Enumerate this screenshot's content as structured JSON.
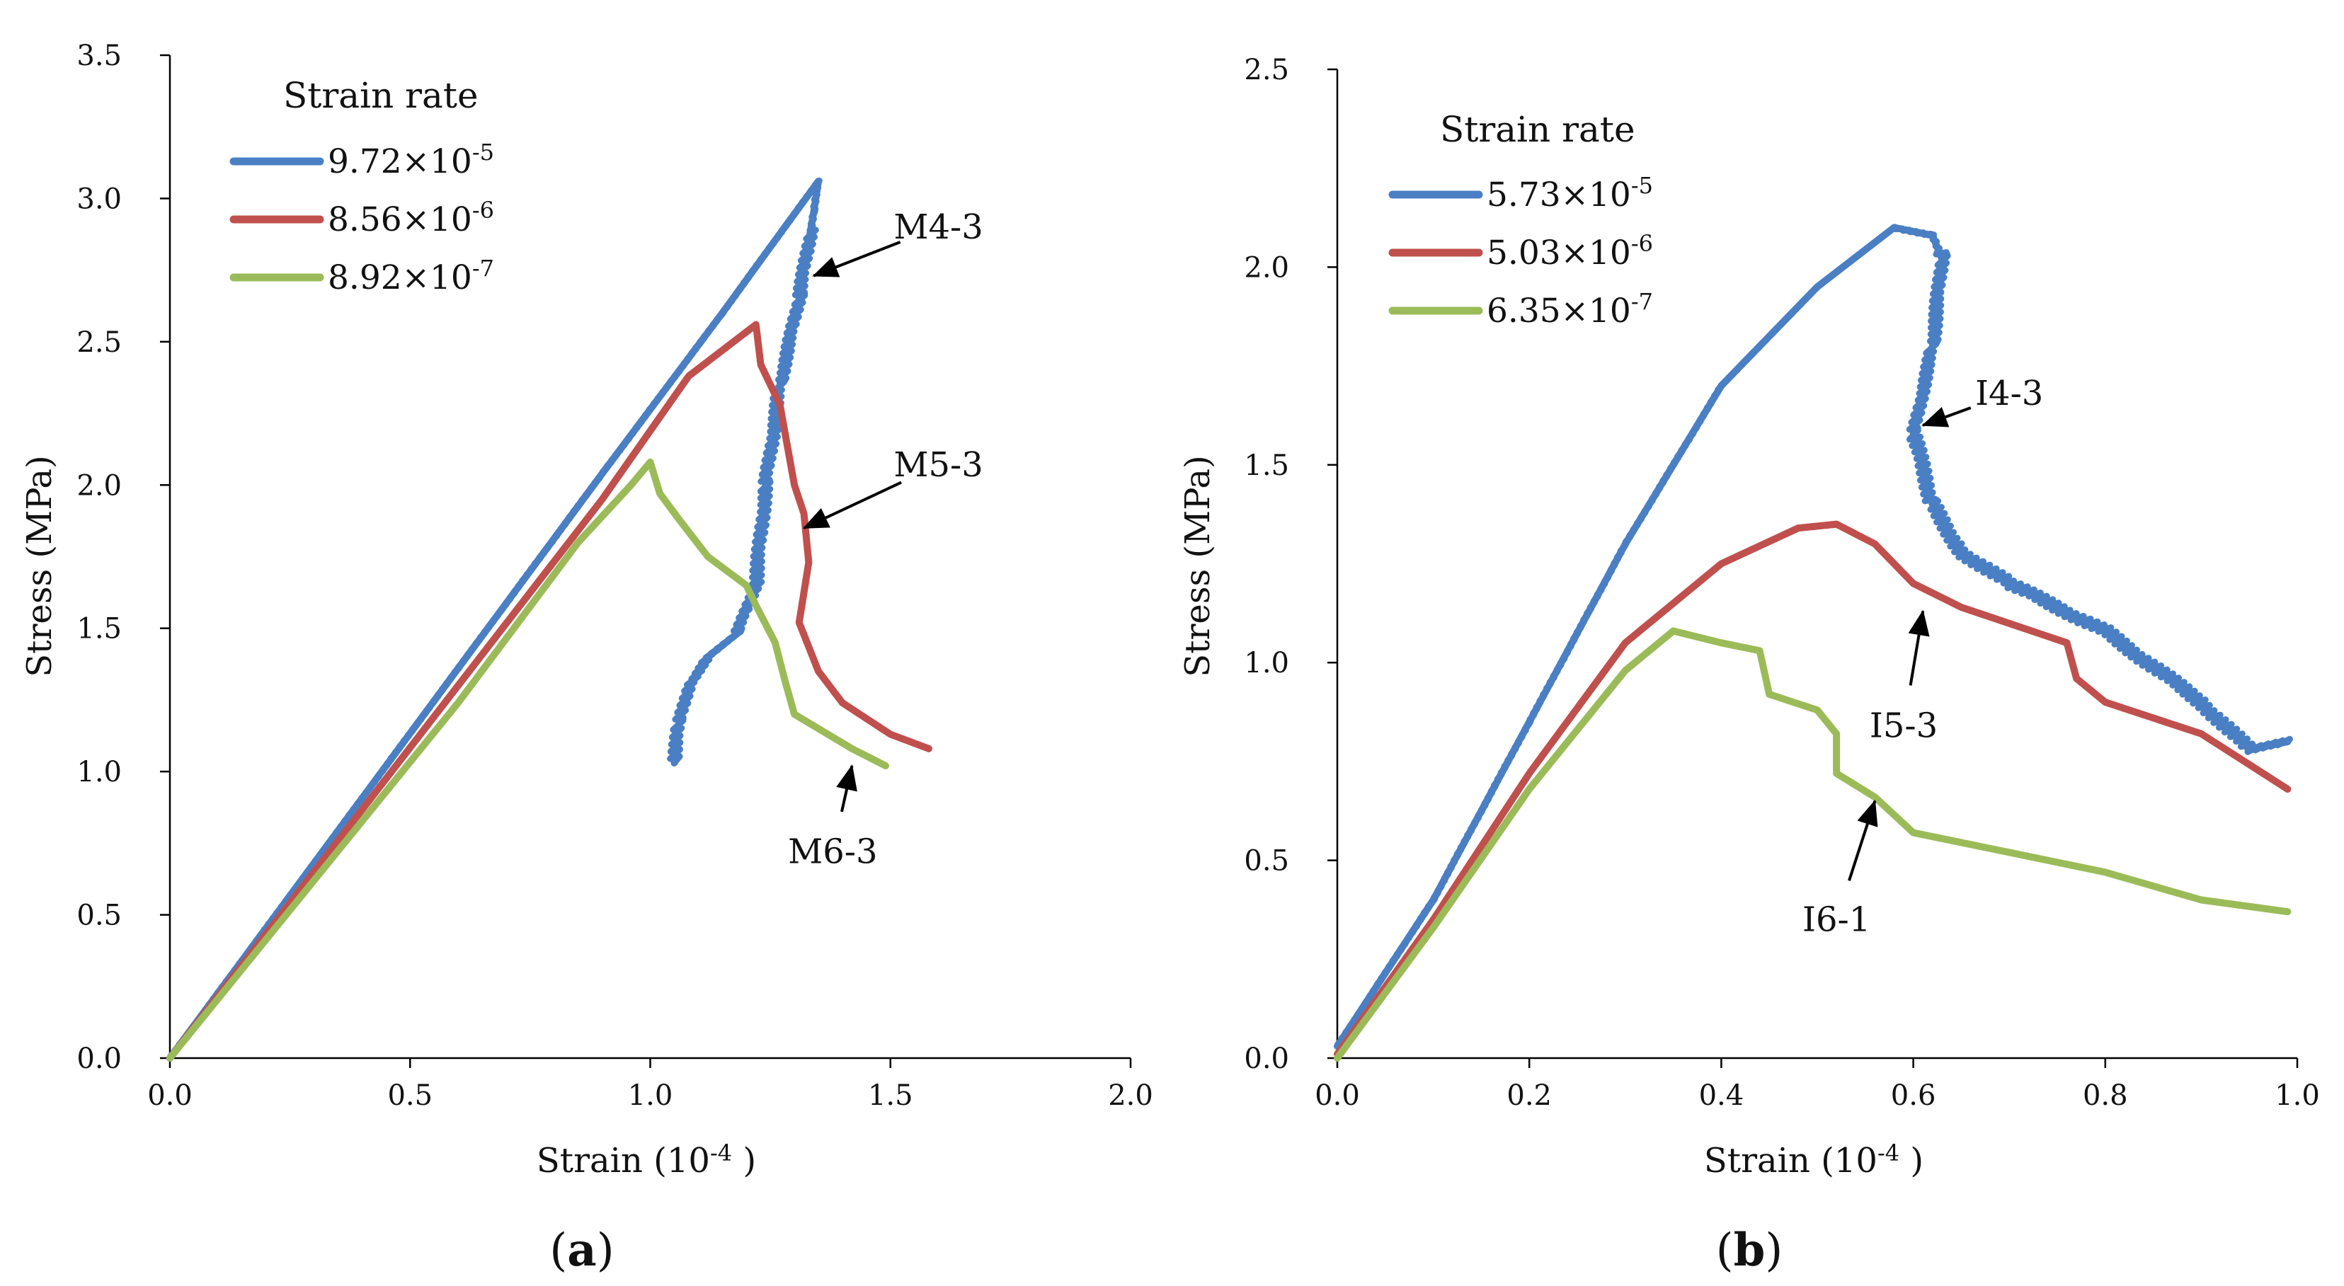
{
  "chart_data": [
    {
      "type": "line",
      "panel_label": {
        "open": "(",
        "letter": "a",
        "close": ")"
      },
      "xlabel": {
        "main": "Strain (10",
        "exp": "-4",
        "tail": " )"
      },
      "ylabel": "Stress (MPa)",
      "xlim": [
        0,
        2.0
      ],
      "ylim": [
        0,
        3.5
      ],
      "xticks": [
        0.0,
        0.5,
        1.0,
        1.5,
        2.0
      ],
      "yticks": [
        0.0,
        0.5,
        1.0,
        1.5,
        2.0,
        2.5,
        3.0,
        3.5
      ],
      "xtick_decimals": 1,
      "ytick_decimals": 1,
      "legend": {
        "title": "Strain rate",
        "position": "top-left"
      },
      "series": [
        {
          "name": "9.72×10-5",
          "base": "9.72×10",
          "exp": "-5",
          "color": "#4a7fc4",
          "noisy": true,
          "points": [
            [
              0,
              0
            ],
            [
              0.3,
              0.68
            ],
            [
              0.6,
              1.36
            ],
            [
              0.9,
              2.04
            ],
            [
              1.15,
              2.6
            ],
            [
              1.28,
              2.9
            ],
            [
              1.35,
              3.06
            ],
            [
              1.34,
              2.95
            ],
            [
              1.31,
              2.65
            ],
            [
              1.27,
              2.35
            ],
            [
              1.24,
              2.0
            ],
            [
              1.22,
              1.65
            ],
            [
              1.18,
              1.48
            ],
            [
              1.12,
              1.4
            ],
            [
              1.08,
              1.3
            ],
            [
              1.06,
              1.17
            ],
            [
              1.05,
              1.03
            ]
          ]
        },
        {
          "name": "8.56×10-6",
          "base": "8.56×10",
          "exp": "-6",
          "color": "#c0504d",
          "noisy": false,
          "points": [
            [
              0,
              0
            ],
            [
              0.3,
              0.65
            ],
            [
              0.6,
              1.3
            ],
            [
              0.9,
              1.95
            ],
            [
              1.08,
              2.38
            ],
            [
              1.22,
              2.56
            ],
            [
              1.23,
              2.42
            ],
            [
              1.27,
              2.28
            ],
            [
              1.3,
              2.0
            ],
            [
              1.32,
              1.9
            ],
            [
              1.33,
              1.73
            ],
            [
              1.31,
              1.52
            ],
            [
              1.35,
              1.35
            ],
            [
              1.4,
              1.24
            ],
            [
              1.5,
              1.13
            ],
            [
              1.58,
              1.08
            ]
          ]
        },
        {
          "name": "8.92×10-7",
          "base": "8.92×10",
          "exp": "-7",
          "color": "#9bbb59",
          "noisy": false,
          "points": [
            [
              0,
              0
            ],
            [
              0.3,
              0.62
            ],
            [
              0.6,
              1.24
            ],
            [
              0.85,
              1.8
            ],
            [
              0.96,
              2.0
            ],
            [
              1.0,
              2.08
            ],
            [
              1.02,
              1.97
            ],
            [
              1.06,
              1.88
            ],
            [
              1.12,
              1.75
            ],
            [
              1.2,
              1.65
            ],
            [
              1.22,
              1.58
            ],
            [
              1.26,
              1.45
            ],
            [
              1.28,
              1.32
            ],
            [
              1.3,
              1.2
            ],
            [
              1.36,
              1.14
            ],
            [
              1.42,
              1.08
            ],
            [
              1.49,
              1.02
            ]
          ]
        }
      ],
      "annotations": [
        {
          "text": "M4-3",
          "x": 1.6,
          "y": 2.9,
          "ax": 1.34,
          "ay": 2.73
        },
        {
          "text": "M5-3",
          "x": 1.6,
          "y": 2.07,
          "ax": 1.32,
          "ay": 1.85
        },
        {
          "text": "M6-3",
          "x": 1.38,
          "y": 0.72,
          "ax": 1.42,
          "ay": 1.02
        }
      ]
    },
    {
      "type": "line",
      "panel_label": {
        "open": "(",
        "letter": "b",
        "close": ")"
      },
      "xlabel": {
        "main": "Strain (10",
        "exp": "-4",
        "tail": " )"
      },
      "ylabel": "Stress (MPa)",
      "xlim": [
        0,
        1.0
      ],
      "ylim": [
        0,
        2.5
      ],
      "xticks": [
        0.0,
        0.2,
        0.4,
        0.6,
        0.8,
        1.0
      ],
      "yticks": [
        0.0,
        0.5,
        1.0,
        1.5,
        2.0,
        2.5
      ],
      "xtick_decimals": 1,
      "ytick_decimals": 1,
      "legend": {
        "title": "Strain rate",
        "position": "top-left"
      },
      "series": [
        {
          "name": "5.73×10-5",
          "base": "5.73×10",
          "exp": "-5",
          "color": "#4a7fc4",
          "noisy": true,
          "points": [
            [
              0,
              0.03
            ],
            [
              0.1,
              0.4
            ],
            [
              0.2,
              0.85
            ],
            [
              0.3,
              1.3
            ],
            [
              0.4,
              1.7
            ],
            [
              0.5,
              1.95
            ],
            [
              0.58,
              2.1
            ],
            [
              0.62,
              2.08
            ],
            [
              0.63,
              2.02
            ],
            [
              0.62,
              1.8
            ],
            [
              0.6,
              1.58
            ],
            [
              0.62,
              1.4
            ],
            [
              0.65,
              1.28
            ],
            [
              0.7,
              1.2
            ],
            [
              0.8,
              1.08
            ],
            [
              0.9,
              0.9
            ],
            [
              0.95,
              0.78
            ],
            [
              0.99,
              0.8
            ]
          ]
        },
        {
          "name": "5.03×10-6",
          "base": "5.03×10",
          "exp": "-6",
          "color": "#c0504d",
          "noisy": false,
          "points": [
            [
              0,
              0.01
            ],
            [
              0.1,
              0.35
            ],
            [
              0.2,
              0.72
            ],
            [
              0.3,
              1.05
            ],
            [
              0.4,
              1.25
            ],
            [
              0.48,
              1.34
            ],
            [
              0.52,
              1.35
            ],
            [
              0.56,
              1.3
            ],
            [
              0.6,
              1.2
            ],
            [
              0.65,
              1.14
            ],
            [
              0.76,
              1.05
            ],
            [
              0.77,
              0.96
            ],
            [
              0.8,
              0.9
            ],
            [
              0.9,
              0.82
            ],
            [
              0.99,
              0.68
            ]
          ]
        },
        {
          "name": "6.35×10-7",
          "base": "6.35×10",
          "exp": "-7",
          "color": "#9bbb59",
          "noisy": false,
          "points": [
            [
              0,
              0.0
            ],
            [
              0.1,
              0.33
            ],
            [
              0.2,
              0.68
            ],
            [
              0.3,
              0.98
            ],
            [
              0.35,
              1.08
            ],
            [
              0.4,
              1.05
            ],
            [
              0.44,
              1.03
            ],
            [
              0.45,
              0.92
            ],
            [
              0.5,
              0.88
            ],
            [
              0.52,
              0.82
            ],
            [
              0.52,
              0.72
            ],
            [
              0.56,
              0.66
            ],
            [
              0.6,
              0.57
            ],
            [
              0.7,
              0.52
            ],
            [
              0.8,
              0.47
            ],
            [
              0.9,
              0.4
            ],
            [
              0.99,
              0.37
            ]
          ]
        }
      ],
      "annotations": [
        {
          "text": "I4-3",
          "x": 0.7,
          "y": 1.68,
          "ax": 0.61,
          "ay": 1.6
        },
        {
          "text": "I5-3",
          "x": 0.59,
          "y": 0.84,
          "ax": 0.61,
          "ay": 1.13
        },
        {
          "text": "I6-1",
          "x": 0.52,
          "y": 0.35,
          "ax": 0.56,
          "ay": 0.65
        }
      ]
    }
  ]
}
